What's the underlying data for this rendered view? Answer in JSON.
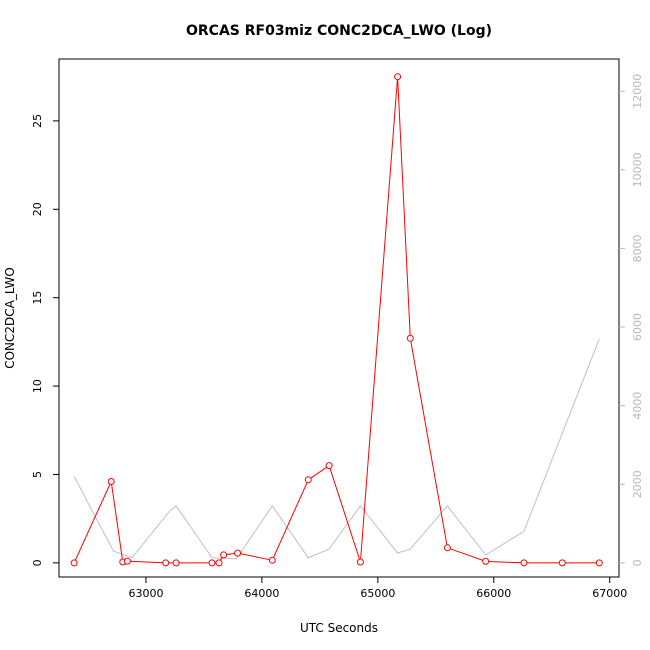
{
  "chart_data": {
    "type": "line",
    "title": "ORCAS RF03miz CONC2DCA_LWO (Log)",
    "xlabel": "UTC Seconds",
    "ylabel": "CONC2DCA_LWO",
    "xlim": [
      62250,
      67080
    ],
    "ylim": [
      -0.8,
      28.5
    ],
    "y2lim": [
      -360,
      12820
    ],
    "x_ticks": [
      63000,
      64000,
      65000,
      66000,
      67000
    ],
    "y_ticks": [
      0,
      5,
      10,
      15,
      20,
      25
    ],
    "y2_ticks": [
      0,
      2000,
      4000,
      6000,
      8000,
      10000,
      12000
    ],
    "series": [
      {
        "axis": "left",
        "color": "#ff0000",
        "marker": "circle",
        "x": [
          62380,
          62700,
          62800,
          62840,
          63170,
          63260,
          63570,
          63630,
          63670,
          63790,
          64090,
          64400,
          64580,
          64850,
          65170,
          65280,
          65600,
          65930,
          66260,
          66590,
          66910
        ],
        "y": [
          0.0,
          4.6,
          0.05,
          0.1,
          0.0,
          0.0,
          0.0,
          0.0,
          0.45,
          0.55,
          0.15,
          4.7,
          5.5,
          0.05,
          27.5,
          12.7,
          0.85,
          0.08,
          0.0,
          0.0,
          0.0
        ]
      },
      {
        "axis": "right",
        "color": "#c0c0c0",
        "x": [
          62380,
          62720,
          62880,
          63200,
          63260,
          63570,
          63780,
          64090,
          64400,
          64580,
          64850,
          65170,
          65280,
          65600,
          65930,
          66260,
          66910
        ],
        "y": [
          2200,
          300,
          130,
          1300,
          1450,
          130,
          100,
          1450,
          130,
          350,
          1450,
          250,
          350,
          1450,
          200,
          800,
          5700
        ]
      }
    ]
  }
}
